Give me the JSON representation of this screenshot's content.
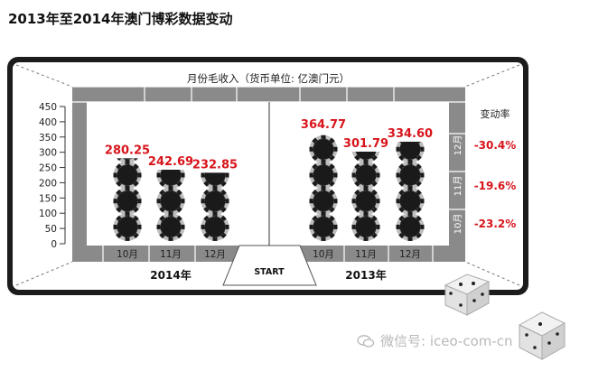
{
  "page": {
    "title": "2013年至2014年澳门博彩数据变动",
    "watermark": "微信号: iceo-com-cn"
  },
  "chart_data": {
    "type": "bar",
    "title": "月份毛收入（货币单位: 亿澳门元）",
    "yticks": [
      0,
      50,
      100,
      150,
      200,
      250,
      300,
      350,
      400,
      450
    ],
    "ylim": [
      0,
      450
    ],
    "groups": [
      {
        "name": "2014年",
        "categories": [
          "10月",
          "11月",
          "12月"
        ],
        "values": [
          280.25,
          242.69,
          232.85
        ],
        "value_labels": [
          "280.25",
          "242.69",
          "232.85"
        ]
      },
      {
        "name": "2013年",
        "categories": [
          "10月",
          "11月",
          "12月"
        ],
        "values": [
          364.77,
          301.79,
          334.6
        ],
        "value_labels": [
          "364.77",
          "301.79",
          "334.60"
        ]
      }
    ],
    "change_rate": {
      "header": "变动率",
      "months": [
        "12月",
        "11月",
        "10月"
      ],
      "values": [
        "-30.4%",
        "-19.6%",
        "-23.2%"
      ]
    },
    "center_label": "START",
    "colors": {
      "value_text": "#d8141b",
      "chip": "#1a1a1a",
      "chip_edge": "#bdbdbd",
      "frame": "#1c1c1c",
      "lane": "#8a8a8a"
    }
  }
}
